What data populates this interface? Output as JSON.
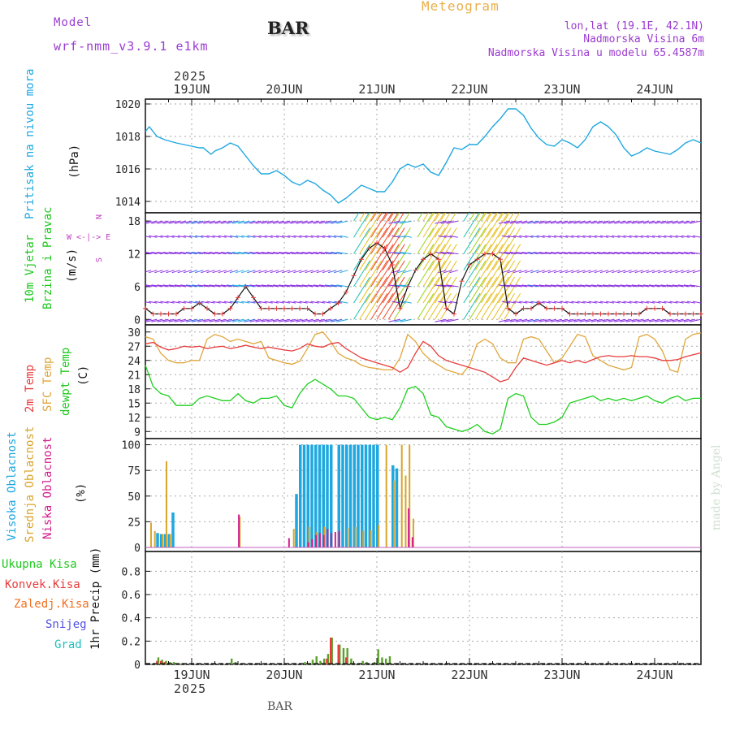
{
  "header": {
    "model_label": "Model",
    "model_name": "wrf-nmm_v3.9.1 e1km",
    "station": "BAR",
    "title": "Meteogram",
    "lonlat": "lon,lat (19.1E, 42.1N)",
    "elevation": "Nadmorska Visina 6m",
    "model_elevation": "Nadmorska Visina u modelu 65.4587m",
    "watermark": "made by Angel",
    "footer_station": "BAR"
  },
  "time_axis": {
    "year": "2025",
    "day_labels": [
      "19JUN",
      "20JUN",
      "21JUN",
      "22JUN",
      "23JUN",
      "24JUN"
    ],
    "start_hour": 0,
    "end_hour": 144
  },
  "colors": {
    "pressure": "#1fa7e0",
    "t2m": "#e83c3c",
    "sfc": "#e0a63c",
    "dewpt": "#1ed01e",
    "cloud_high": "#1fa7e0",
    "cloud_mid": "#d9a52a",
    "cloud_low": "#d31e8c",
    "rain_total": "#1ec81e",
    "rain_conv": "#e83c3c",
    "rain_frz": "#f07020",
    "snow": "#5050e0",
    "graupel": "#20c0c0",
    "header_purple": "#9b3bd0",
    "header_orange": "#e8b04c"
  },
  "chart_data": [
    {
      "type": "line",
      "panel": "pressure",
      "ylabels": [
        "Pritisak na nivou mora",
        "(hPa)"
      ],
      "ylim": [
        1013.3,
        1020.3
      ],
      "yticks": [
        1014,
        1016,
        1018,
        1020
      ],
      "series": [
        {
          "x": [
            0,
            1,
            3,
            5,
            8,
            10,
            12,
            14,
            15,
            17,
            18,
            20,
            22,
            24,
            26,
            28,
            30,
            32,
            34,
            36,
            38,
            40,
            42,
            44,
            46,
            48,
            50,
            52,
            54,
            56,
            58,
            60,
            62,
            64,
            66,
            68,
            70,
            72,
            74,
            76,
            78,
            80,
            82,
            84,
            86,
            88,
            90,
            92,
            94,
            96,
            98,
            100,
            102,
            104,
            106,
            108,
            110,
            112,
            114,
            116,
            118,
            120,
            122,
            124,
            126,
            128,
            130,
            132,
            134,
            136,
            138,
            140,
            142,
            144
          ],
          "values": [
            1018.3,
            1018.6,
            1018.0,
            1017.8,
            1017.6,
            1017.5,
            1017.4,
            1017.3,
            1017.3,
            1016.9,
            1017.1,
            1017.3,
            1017.6,
            1017.4,
            1016.8,
            1016.2,
            1015.7,
            1015.7,
            1015.9,
            1015.6,
            1015.2,
            1015.0,
            1015.3,
            1015.1,
            1014.7,
            1014.4,
            1013.9,
            1014.2,
            1014.6,
            1015.0,
            1014.8,
            1014.6,
            1014.6,
            1015.2,
            1016.0,
            1016.3,
            1016.1,
            1016.3,
            1015.8,
            1015.6,
            1016.4,
            1017.3,
            1017.2,
            1017.5,
            1017.5,
            1018.0,
            1018.6,
            1019.1,
            1019.7,
            1019.7,
            1019.3,
            1018.5,
            1017.9,
            1017.5,
            1017.4,
            1017.8,
            1017.6,
            1017.3,
            1017.8,
            1018.6,
            1018.9,
            1018.6,
            1018.1,
            1017.3,
            1016.8,
            1017.0,
            1017.3,
            1017.1,
            1017.0,
            1016.9,
            1017.2,
            1017.6,
            1017.8,
            1017.6
          ]
        }
      ]
    },
    {
      "type": "line",
      "panel": "wind",
      "ylabels": [
        "10m Vjetar",
        "Brzina i Pravac",
        "(m/s)"
      ],
      "legend_compass": [
        "N",
        "W <-|-> E",
        "S"
      ],
      "ylim": [
        -1,
        19.5
      ],
      "yticks": [
        0,
        6,
        12,
        18
      ],
      "series": [
        {
          "name": "wind speed",
          "x": [
            0,
            2,
            4,
            6,
            8,
            10,
            12,
            14,
            16,
            18,
            20,
            22,
            24,
            26,
            28,
            30,
            32,
            34,
            36,
            38,
            40,
            42,
            44,
            46,
            48,
            50,
            52,
            54,
            56,
            58,
            60,
            62,
            64,
            66,
            68,
            70,
            72,
            74,
            76,
            78,
            80,
            82,
            84,
            86,
            88,
            90,
            92,
            94,
            96,
            98,
            100,
            102,
            104,
            106,
            108,
            110,
            112,
            114,
            116,
            118,
            120,
            122,
            124,
            126,
            128,
            130,
            132,
            134,
            136,
            138,
            140,
            142,
            144
          ],
          "values": [
            2,
            1,
            1,
            1,
            1,
            2,
            2,
            3,
            2,
            1,
            1,
            2,
            4,
            6,
            4,
            2,
            2,
            2,
            2,
            2,
            2,
            2,
            1,
            1,
            2,
            3,
            5,
            8,
            11,
            13,
            14,
            13,
            10,
            2,
            6,
            9,
            11,
            12,
            11,
            2,
            1,
            7,
            10,
            11,
            12,
            12,
            11,
            2,
            1,
            2,
            2,
            3,
            2,
            2,
            2,
            1,
            1,
            1,
            1,
            1,
            1,
            1,
            1,
            1,
            1,
            2,
            2,
            2,
            1,
            1,
            1,
            1,
            1
          ],
          "color": "#e83c3c"
        }
      ]
    },
    {
      "type": "line",
      "panel": "temperature",
      "ylabels": [
        "2m Temp",
        "SFC Temp",
        "dewpt Temp",
        "(C)"
      ],
      "ylim": [
        7.5,
        31.5
      ],
      "yticks": [
        9,
        12,
        15,
        18,
        21,
        24,
        27,
        30
      ],
      "series": [
        {
          "name": "2m Temp",
          "x": [
            0,
            2,
            4,
            6,
            8,
            10,
            12,
            14,
            16,
            18,
            20,
            22,
            24,
            26,
            28,
            30,
            32,
            34,
            36,
            38,
            40,
            42,
            44,
            46,
            48,
            50,
            52,
            54,
            56,
            58,
            60,
            62,
            64,
            66,
            68,
            70,
            72,
            74,
            76,
            78,
            80,
            82,
            84,
            86,
            88,
            90,
            92,
            94,
            96,
            98,
            100,
            102,
            104,
            106,
            108,
            110,
            112,
            114,
            116,
            118,
            120,
            122,
            124,
            126,
            128,
            130,
            132,
            134,
            136,
            138,
            140,
            142,
            144
          ],
          "values": [
            27.5,
            27.8,
            26.8,
            26.2,
            26.5,
            27.0,
            26.8,
            27.0,
            26.5,
            26.8,
            27.0,
            26.5,
            26.8,
            27.2,
            26.8,
            26.5,
            26.8,
            26.5,
            26.2,
            26.0,
            26.5,
            27.5,
            27.0,
            26.8,
            27.5,
            27.8,
            26.5,
            25.5,
            24.5,
            24.0,
            23.5,
            23.0,
            22.5,
            21.5,
            22.5,
            25.5,
            28.0,
            27.0,
            25.0,
            24.0,
            23.5,
            23.0,
            22.5,
            22.0,
            21.5,
            20.5,
            19.5,
            20.0,
            22.5,
            24.5,
            24.0,
            23.5,
            23.0,
            23.5,
            24.0,
            23.5,
            24.0,
            23.5,
            24.2,
            24.8,
            25.0,
            24.8,
            24.8,
            25.0,
            24.8,
            24.8,
            24.5,
            24.0,
            24.0,
            24.2,
            24.8,
            25.2,
            25.6
          ]
        },
        {
          "name": "SFC Temp",
          "x": [
            0,
            2,
            4,
            6,
            8,
            10,
            12,
            14,
            16,
            18,
            20,
            22,
            24,
            26,
            28,
            30,
            32,
            34,
            36,
            38,
            40,
            42,
            44,
            46,
            48,
            50,
            52,
            54,
            56,
            58,
            60,
            62,
            64,
            66,
            68,
            70,
            72,
            74,
            76,
            78,
            80,
            82,
            84,
            86,
            88,
            90,
            92,
            94,
            96,
            98,
            100,
            102,
            104,
            106,
            108,
            110,
            112,
            114,
            116,
            118,
            120,
            122,
            124,
            126,
            128,
            130,
            132,
            134,
            136,
            138,
            140,
            142,
            144
          ],
          "values": [
            29.0,
            28.5,
            25.5,
            24.0,
            23.5,
            23.5,
            24.0,
            24.0,
            28.5,
            29.5,
            29.0,
            28.0,
            28.5,
            28.0,
            27.5,
            28.0,
            24.5,
            24.0,
            23.5,
            23.2,
            23.8,
            26.5,
            29.5,
            30.0,
            28.0,
            25.5,
            24.5,
            24.0,
            23.0,
            22.5,
            22.3,
            22.0,
            22.0,
            24.5,
            29.5,
            28.0,
            25.5,
            24.0,
            23.0,
            22.0,
            21.5,
            21.0,
            23.0,
            27.5,
            28.5,
            27.5,
            24.5,
            23.5,
            23.5,
            28.5,
            29.0,
            28.5,
            26.0,
            23.5,
            24.5,
            27.0,
            29.5,
            29.0,
            25.0,
            24.0,
            23.0,
            22.5,
            22.0,
            22.5,
            29.0,
            29.5,
            28.5,
            26.0,
            22.0,
            21.5,
            28.5,
            29.5,
            29.8
          ]
        },
        {
          "name": "dewpt Temp",
          "x": [
            0,
            2,
            4,
            6,
            8,
            10,
            12,
            14,
            16,
            18,
            20,
            22,
            24,
            26,
            28,
            30,
            32,
            34,
            36,
            38,
            40,
            42,
            44,
            46,
            48,
            50,
            52,
            54,
            56,
            58,
            60,
            62,
            64,
            66,
            68,
            70,
            72,
            74,
            76,
            78,
            80,
            82,
            84,
            86,
            88,
            90,
            92,
            94,
            96,
            98,
            100,
            102,
            104,
            106,
            108,
            110,
            112,
            114,
            116,
            118,
            120,
            122,
            124,
            126,
            128,
            130,
            132,
            134,
            136,
            138,
            140,
            142,
            144
          ],
          "values": [
            23.0,
            18.5,
            17.0,
            16.5,
            14.5,
            14.5,
            14.5,
            16.0,
            16.5,
            16.0,
            15.5,
            15.5,
            17.0,
            15.5,
            15.0,
            16.0,
            16.0,
            16.5,
            14.5,
            14.0,
            17.0,
            19.0,
            20.0,
            19.0,
            18.0,
            16.5,
            16.5,
            16.0,
            14.0,
            12.0,
            11.5,
            12.0,
            11.5,
            14.0,
            18.0,
            18.5,
            17.0,
            12.5,
            12.0,
            10.0,
            9.5,
            9.0,
            9.5,
            10.5,
            9.0,
            8.5,
            9.5,
            16.0,
            17.0,
            16.5,
            12.0,
            10.5,
            10.5,
            11.0,
            12.0,
            15.0,
            15.5,
            16.0,
            16.5,
            15.5,
            16.0,
            15.5,
            16.0,
            15.5,
            16.0,
            16.5,
            15.5,
            15.0,
            16.0,
            16.5,
            15.5,
            16.0,
            16.0
          ]
        }
      ]
    },
    {
      "type": "bar",
      "panel": "cloud",
      "ylabels": [
        "Visoka Oblacnost",
        "Srednja Oblacnost",
        "Niska Oblacnost",
        "(%)"
      ],
      "ylim": [
        -4,
        106
      ],
      "yticks": [
        0,
        25,
        50,
        75,
        100
      ],
      "series": [
        {
          "name": "Visoka Oblacnost",
          "x": [
            3,
            4,
            5,
            6,
            7,
            39,
            40,
            41,
            42,
            43,
            44,
            45,
            46,
            47,
            48,
            50,
            51,
            52,
            53,
            54,
            55,
            56,
            57,
            58,
            59,
            60,
            64,
            65
          ],
          "values": [
            14,
            13,
            13,
            13,
            34,
            52,
            100,
            100,
            100,
            100,
            100,
            100,
            100,
            100,
            100,
            100,
            100,
            100,
            100,
            100,
            100,
            100,
            100,
            100,
            100,
            100,
            80,
            77
          ]
        },
        {
          "name": "Srednja Oblacnost",
          "x": [
            1,
            2,
            4,
            5,
            6,
            24,
            38,
            42,
            44,
            46,
            52,
            54,
            56,
            58,
            60,
            62,
            64,
            66,
            67,
            68,
            69
          ],
          "values": [
            24,
            16,
            13,
            84,
            13,
            30,
            18,
            20,
            15,
            20,
            19,
            20,
            16,
            17,
            22,
            100,
            65,
            100,
            70,
            100,
            28
          ]
        },
        {
          "name": "Niska Oblacnost",
          "x": [
            24,
            37,
            42,
            43,
            44,
            45,
            46,
            47,
            48,
            49,
            50,
            68,
            69
          ],
          "values": [
            32,
            9,
            5,
            8,
            12,
            14,
            12,
            18,
            14,
            15,
            16,
            38,
            10
          ]
        }
      ]
    },
    {
      "type": "bar",
      "panel": "precip",
      "ylabels": [
        "Ukupna Kisa",
        "Konvek.Kisa",
        "Zaledj.Kisa",
        "Snijeg",
        "Grad",
        "1hr Precip (mm)"
      ],
      "ylim": [
        0,
        0.97
      ],
      "yticks": [
        0,
        0.2,
        0.4,
        0.6,
        0.8
      ],
      "ytick_labels": [
        "0",
        "0.2",
        "0.4",
        "0.6",
        "0.8"
      ],
      "series": [
        {
          "name": "Ukupna Kisa",
          "x": [
            3,
            4,
            5,
            6,
            7,
            8,
            9,
            22,
            23,
            41,
            42,
            43,
            44,
            45,
            46,
            47,
            48,
            50,
            51,
            52,
            53,
            54,
            56,
            57,
            59,
            60,
            61,
            62,
            63
          ],
          "values": [
            0.06,
            0.04,
            0.03,
            0.02,
            0.02,
            0.01,
            0.01,
            0.05,
            0.02,
            0.02,
            0.01,
            0.04,
            0.07,
            0.03,
            0.05,
            0.09,
            0.23,
            0.17,
            0.14,
            0.14,
            0.05,
            0.01,
            0.03,
            0.02,
            0.02,
            0.13,
            0.06,
            0.05,
            0.07
          ]
        },
        {
          "name": "Konvek.Kisa",
          "x": [
            3,
            4,
            5,
            47,
            48,
            50,
            52
          ],
          "values": [
            0.03,
            0.03,
            0.02,
            0.05,
            0.23,
            0.17,
            0.06
          ]
        }
      ]
    }
  ]
}
